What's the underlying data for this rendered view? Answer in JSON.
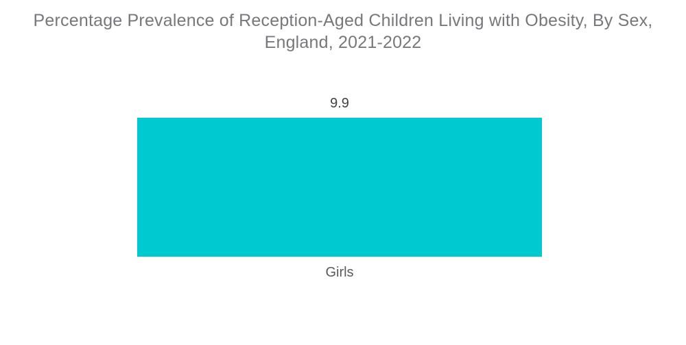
{
  "page": {
    "background_color": "#FFFFFF"
  },
  "chart_data": {
    "type": "bar",
    "title": "Percentage Prevalence of Reception-Aged Children Living with Obesity, By Sex, England, 2021-2022",
    "categories": [
      "Girls"
    ],
    "values": [
      9.9
    ],
    "value_labels": [
      "9.9"
    ],
    "series": [
      {
        "name": "Girls",
        "values": [
          9.9
        ]
      }
    ],
    "xlabel": "",
    "ylabel": "",
    "ylim": [
      0,
      9.9
    ],
    "grid": false,
    "legend": false,
    "axes_visible": false,
    "bar_color": "#00C9CF",
    "title_color": "#77787B",
    "value_label_color": "#414144",
    "category_label_color": "#58595B"
  }
}
